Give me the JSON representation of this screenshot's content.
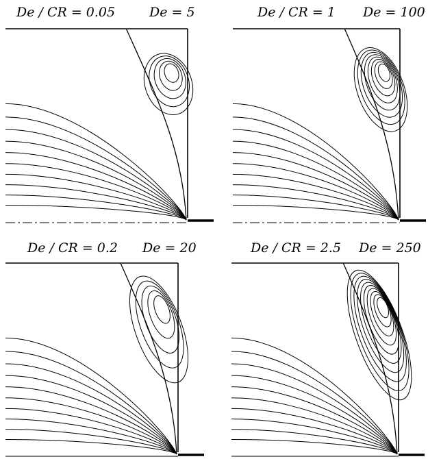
{
  "panels": [
    {
      "ratio_label": "De / CR = 0.05",
      "de_label": "De = 5",
      "has_axis": true
    },
    {
      "ratio_label": "De / CR = 1",
      "de_label": "De = 100",
      "has_axis": true
    },
    {
      "ratio_label": "De / CR = 0.2",
      "de_label": "De = 20",
      "has_axis": false
    },
    {
      "ratio_label": "De / CR = 2.5",
      "de_label": "De = 250",
      "has_axis": false
    }
  ],
  "line_color": "#000000"
}
